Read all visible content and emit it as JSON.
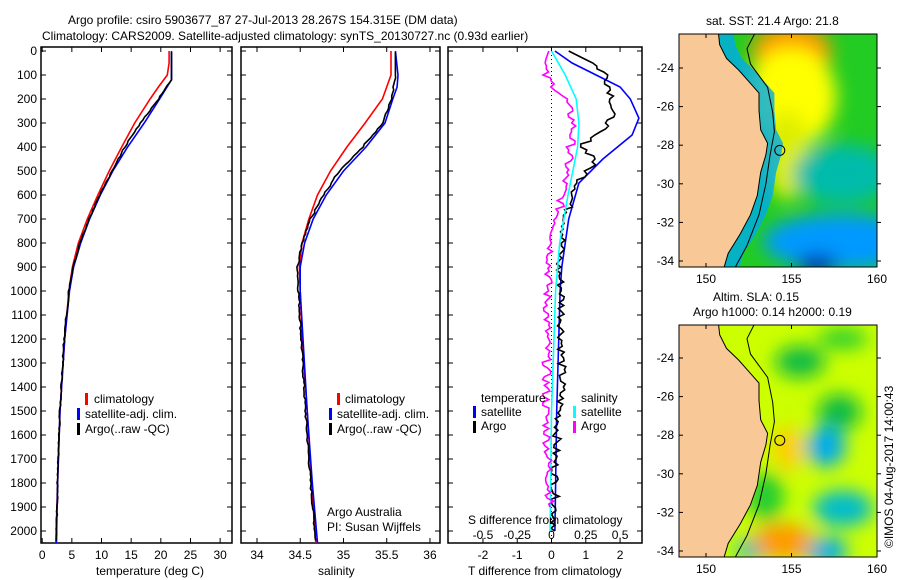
{
  "title": {
    "line1": "Argo profile: csiro 5903677_87 27-Jul-2013 28.267S 154.315E (DM data)",
    "line2": "Climatology: CARS2009. Satellite-adjusted climatology: synTS_20130727.nc (0.93d earlier)"
  },
  "colors": {
    "climatology": "#ff0000",
    "satellite": "#0000ff",
    "argo": "#000000",
    "sal_satellite": "#00ffff",
    "sal_argo": "#ff00ff",
    "land": "#f8c896"
  },
  "depth_axis": {
    "ticks": [
      0,
      100,
      200,
      300,
      400,
      500,
      600,
      700,
      800,
      900,
      1000,
      1100,
      1200,
      1300,
      1400,
      1500,
      1600,
      1700,
      1800,
      1900,
      2000
    ]
  },
  "legend_ts": {
    "climatology": "climatology",
    "satellite": "satellite-adj. clim.",
    "argo": "Argo(..raw -QC)"
  },
  "legend_diff": {
    "temperature": "temperature",
    "salinity": "salinity",
    "t_satellite": "satellite",
    "t_argo": "Argo",
    "s_satellite": "satellite",
    "s_argo": "Argo"
  },
  "credit": {
    "line1": "Argo Australia",
    "line2": "PI: Susan Wijffels"
  },
  "timestamp": "©IMOS 04-Aug-2017 14:00:43",
  "chart_data": [
    {
      "type": "line",
      "xlabel": "temperature (deg C)",
      "ylabel": "depth",
      "xlim": [
        -0.2,
        32
      ],
      "ylim": [
        2080,
        0
      ],
      "xticks": [
        0,
        5,
        10,
        15,
        20,
        25,
        30
      ],
      "series": [
        {
          "name": "climatology",
          "depth": [
            0,
            50,
            100,
            150,
            200,
            300,
            400,
            500,
            600,
            700,
            800,
            900,
            1000,
            1200,
            1500,
            1800,
            2050
          ],
          "values": [
            21.4,
            21.4,
            21.1,
            19.6,
            18.2,
            15.6,
            13.4,
            11.3,
            9.4,
            7.6,
            6.1,
            5.1,
            4.5,
            3.8,
            3.0,
            2.6,
            2.3
          ]
        },
        {
          "name": "satellite-adj. clim.",
          "depth": [
            0,
            120,
            200,
            300,
            400,
            500,
            600,
            700,
            800,
            900,
            1000,
            1200,
            1500,
            1800,
            2050
          ],
          "values": [
            21.8,
            21.8,
            19.8,
            17.2,
            14.4,
            11.9,
            9.8,
            8.0,
            6.5,
            5.3,
            4.6,
            3.8,
            3.0,
            2.6,
            2.4
          ]
        },
        {
          "name": "Argo(..raw -QC)",
          "depth": [
            5,
            120,
            200,
            300,
            400,
            500,
            600,
            700,
            800,
            900,
            1000,
            1200,
            1500,
            1800,
            2040
          ],
          "values": [
            21.8,
            21.8,
            19.6,
            16.6,
            13.9,
            11.8,
            9.7,
            7.9,
            6.4,
            5.2,
            4.5,
            3.7,
            3.0,
            2.6,
            2.4
          ]
        }
      ]
    },
    {
      "type": "line",
      "xlabel": "salinity",
      "ylabel": "depth",
      "xlim": [
        33.815,
        36.116
      ],
      "ylim": [
        2080,
        0
      ],
      "xticks": [
        34,
        34.5,
        35,
        35.5,
        36
      ],
      "series": [
        {
          "name": "climatology",
          "depth": [
            0,
            100,
            200,
            300,
            400,
            500,
            600,
            700,
            800,
            900,
            1000,
            1200,
            1500,
            1800,
            2050
          ],
          "values": [
            35.55,
            35.55,
            35.45,
            35.25,
            35.04,
            34.85,
            34.7,
            34.6,
            34.52,
            34.49,
            34.5,
            34.52,
            34.58,
            34.63,
            34.68
          ]
        },
        {
          "name": "satellite-adj. clim.",
          "depth": [
            0,
            100,
            150,
            200,
            300,
            400,
            500,
            600,
            700,
            800,
            900,
            1000,
            1500,
            1800,
            2050
          ],
          "values": [
            35.6,
            35.63,
            35.62,
            35.57,
            35.48,
            35.26,
            35.0,
            34.8,
            34.65,
            34.55,
            34.5,
            34.5,
            34.58,
            34.64,
            34.7
          ]
        },
        {
          "name": "Argo(..raw -QC)",
          "depth": [
            5,
            100,
            150,
            200,
            300,
            400,
            500,
            600,
            700,
            800,
            900,
            1000,
            1500,
            1800,
            2040
          ],
          "values": [
            35.6,
            35.6,
            35.58,
            35.55,
            35.45,
            35.22,
            34.95,
            34.77,
            34.62,
            34.52,
            34.47,
            34.48,
            34.56,
            34.62,
            34.68
          ]
        }
      ]
    },
    {
      "type": "line",
      "xlabel": "T difference from climatology",
      "x2label": "S difference from climatology",
      "ylabel": "depth",
      "xlim": [
        -3.02,
        2.64
      ],
      "ylim": [
        2080,
        0
      ],
      "xticks": [
        -2,
        -1,
        0,
        1,
        2
      ],
      "x2ticks": [
        -0.5,
        -0.25,
        0,
        0.25,
        0.5
      ],
      "series": [
        {
          "name": "temperature satellite",
          "axis": "T",
          "depth": [
            0,
            50,
            100,
            150,
            200,
            280,
            350,
            450,
            550,
            700,
            900,
            1000,
            1500,
            2000
          ],
          "values": [
            0.1,
            0.6,
            1.3,
            2.0,
            2.3,
            2.55,
            2.35,
            1.5,
            0.8,
            0.5,
            0.3,
            0.25,
            0.15,
            0.1
          ]
        },
        {
          "name": "temperature Argo",
          "axis": "T",
          "depth": [
            0,
            50,
            100,
            200,
            300,
            350,
            400,
            450,
            550,
            650,
            800,
            900,
            1000,
            1400,
            1700,
            2000
          ],
          "values": [
            0.5,
            1.2,
            1.6,
            1.8,
            1.7,
            1.2,
            0.9,
            1.3,
            0.8,
            0.5,
            0.3,
            0.2,
            0.3,
            0.3,
            0.1,
            0.1
          ]
        },
        {
          "name": "salinity satellite",
          "axis": "S",
          "depth": [
            0,
            50,
            100,
            200,
            300,
            400,
            600,
            800,
            1000,
            1500,
            2000
          ],
          "values": [
            0.0,
            0.05,
            0.1,
            0.18,
            0.2,
            0.19,
            0.12,
            0.06,
            0.03,
            0.0,
            -0.01
          ]
        },
        {
          "name": "salinity Argo",
          "axis": "S",
          "depth": [
            0,
            50,
            100,
            200,
            300,
            400,
            600,
            800,
            1000,
            1500,
            1900
          ],
          "values": [
            -0.02,
            -0.05,
            -0.05,
            0.1,
            0.16,
            0.14,
            0.08,
            0.0,
            -0.03,
            -0.04,
            -0.01
          ]
        }
      ]
    }
  ],
  "maps": [
    {
      "title": "sat. SST: 21.4 Argo: 21.8",
      "xticks": [
        150,
        155,
        160
      ],
      "yticks": [
        "-24",
        "-26",
        "-28",
        "-30",
        "-32",
        "-34"
      ],
      "argo_lon": 154.315,
      "argo_lat": -28.267
    },
    {
      "title1": "Altim. SLA: 0.15",
      "title2": "Argo h1000: 0.14 h2000: 0.19",
      "xticks": [
        150,
        155,
        160
      ],
      "yticks": [
        "-24",
        "-26",
        "-28",
        "-30",
        "-32",
        "-34"
      ],
      "argo_lon": 154.315,
      "argo_lat": -28.267
    }
  ]
}
